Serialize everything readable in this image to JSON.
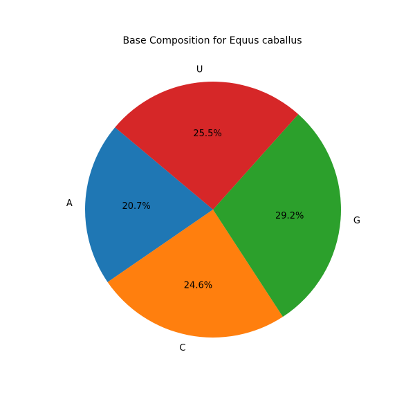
{
  "chart_data": {
    "type": "pie",
    "title": "Base Composition for Equus caballus",
    "categories": [
      "A",
      "C",
      "G",
      "U"
    ],
    "values": [
      20.7,
      24.6,
      29.2,
      25.5
    ],
    "value_labels": [
      "20.7%",
      "24.6%",
      "29.2%",
      "25.5%"
    ],
    "colors": [
      "#1f77b4",
      "#ff7f0e",
      "#2ca02c",
      "#d62728"
    ],
    "start_angle_deg": 140,
    "direction": "counterclockwise"
  }
}
